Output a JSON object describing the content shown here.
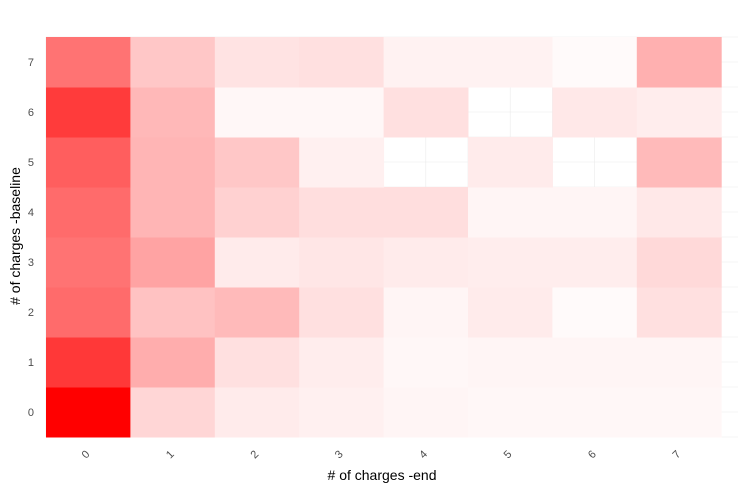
{
  "chart_data": {
    "type": "heatmap",
    "title": "",
    "xlabel": "# of charges -end",
    "ylabel": "# of charges -baseline",
    "x_categories": [
      "0",
      "1",
      "2",
      "3",
      "4",
      "5",
      "6",
      "7"
    ],
    "y_categories": [
      "0",
      "1",
      "2",
      "3",
      "4",
      "5",
      "6",
      "7"
    ],
    "color_low": "#ffffff",
    "color_high": "#ff0000",
    "grid": true,
    "legend": "none",
    "value_scale": "relative intensity (0 = white, 1 = full red)",
    "values_by_row": [
      [
        1.0,
        0.16,
        0.08,
        0.06,
        0.04,
        0.03,
        0.03,
        0.03
      ],
      [
        0.78,
        0.32,
        0.12,
        0.07,
        0.03,
        0.04,
        0.04,
        0.04
      ],
      [
        0.58,
        0.24,
        0.27,
        0.12,
        0.04,
        0.08,
        0.02,
        0.12
      ],
      [
        0.55,
        0.36,
        0.08,
        0.1,
        0.08,
        0.07,
        0.07,
        0.15
      ],
      [
        0.58,
        0.29,
        0.18,
        0.13,
        0.13,
        0.04,
        0.04,
        0.09
      ],
      [
        0.63,
        0.29,
        0.22,
        0.06,
        null,
        0.08,
        null,
        0.27
      ],
      [
        0.77,
        0.28,
        0.03,
        0.03,
        0.12,
        null,
        0.09,
        0.07
      ],
      [
        0.55,
        0.22,
        0.11,
        0.12,
        0.05,
        0.05,
        0.02,
        0.31
      ]
    ]
  }
}
